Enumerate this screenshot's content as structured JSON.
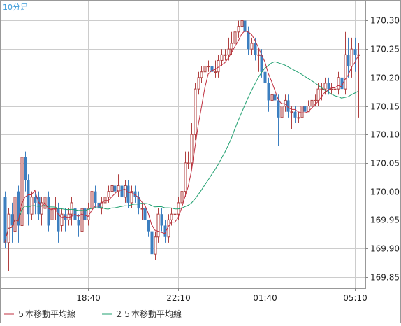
{
  "timeframe_label": "10分足",
  "legend": {
    "ma5_label": "５本移動平均線",
    "ma25_label": "２５本移動平均線"
  },
  "colors": {
    "up": "#b04040",
    "down": "#3c7fc0",
    "ma5": "#c03040",
    "ma25": "#20a070",
    "grid": "#cccccc",
    "axis": "#888888"
  },
  "chart_data": {
    "type": "candlestick",
    "title": "",
    "x_tick_labels": [
      "18:40",
      "22:10",
      "01:40",
      "05:10"
    ],
    "x_tick_candle_index": [
      25,
      52,
      78,
      105
    ],
    "y_tick_labels": [
      "170.30",
      "170.25",
      "170.20",
      "170.15",
      "170.10",
      "170.05",
      "170.00",
      "169.95",
      "169.90",
      "169.85"
    ],
    "ylim": [
      169.83,
      170.335
    ],
    "grid": true,
    "legend_position": "bottom-left",
    "series": [
      {
        "name": "５本移動平均線",
        "type": "line"
      },
      {
        "name": "２５本移動平均線",
        "type": "line"
      }
    ],
    "candles": {
      "open": [
        169.99,
        169.91,
        169.96,
        169.93,
        170.0,
        169.94,
        170.06,
        170.02,
        169.96,
        169.99,
        169.99,
        169.96,
        169.97,
        169.99,
        169.95,
        169.97,
        169.97,
        169.94,
        169.96,
        169.95,
        169.96,
        169.97,
        169.95,
        169.93,
        169.97,
        169.95,
        169.97,
        170.0,
        169.98,
        169.97,
        169.98,
        169.99,
        170.0,
        170.01,
        170.0,
        170.01,
        169.99,
        170.01,
        169.98,
        170.0,
        169.99,
        169.97,
        169.97,
        169.95,
        169.93,
        169.89,
        169.92,
        169.96,
        169.94,
        169.92,
        169.95,
        169.96,
        169.96,
        169.98,
        170.0,
        170.05,
        170.05,
        170.1,
        170.18,
        170.2,
        170.21,
        170.22,
        170.22,
        170.21,
        170.21,
        170.23,
        170.24,
        170.24,
        170.25,
        170.26,
        170.28,
        170.29,
        170.3,
        170.28,
        170.25,
        170.26,
        170.24,
        170.24,
        170.21,
        170.19,
        170.16,
        170.17,
        170.16,
        170.13,
        170.15,
        170.16,
        170.14,
        170.14,
        170.13,
        170.13,
        170.15,
        170.14,
        170.15,
        170.16,
        170.16,
        170.18,
        170.18,
        170.19,
        170.18,
        170.18,
        170.18,
        170.2,
        170.18,
        170.24,
        170.22,
        170.25,
        170.24
      ],
      "close": [
        169.91,
        169.96,
        169.94,
        169.99,
        169.94,
        170.06,
        170.02,
        169.96,
        169.99,
        169.98,
        169.96,
        169.98,
        169.99,
        169.94,
        169.97,
        169.97,
        169.93,
        169.96,
        169.95,
        169.96,
        169.98,
        169.95,
        169.94,
        169.97,
        169.95,
        169.97,
        170.0,
        169.98,
        169.97,
        169.98,
        169.99,
        170.0,
        170.01,
        170.0,
        170.01,
        169.99,
        170.01,
        169.98,
        170.0,
        169.99,
        169.97,
        169.97,
        169.95,
        169.93,
        169.89,
        169.92,
        169.96,
        169.94,
        169.92,
        169.95,
        169.96,
        169.96,
        169.98,
        170.0,
        170.05,
        170.05,
        170.1,
        170.18,
        170.2,
        170.21,
        170.22,
        170.22,
        170.21,
        170.21,
        170.23,
        170.24,
        170.24,
        170.25,
        170.26,
        170.28,
        170.29,
        170.3,
        170.28,
        170.25,
        170.26,
        170.24,
        170.24,
        170.21,
        170.19,
        170.16,
        170.17,
        170.16,
        170.13,
        170.15,
        170.16,
        170.14,
        170.14,
        170.13,
        170.13,
        170.15,
        170.14,
        170.15,
        170.16,
        170.16,
        170.18,
        170.18,
        170.19,
        170.18,
        170.18,
        170.18,
        170.2,
        170.18,
        170.24,
        170.22,
        170.25,
        170.24,
        170.24
      ],
      "high": [
        170.0,
        169.97,
        169.98,
        170.0,
        170.01,
        170.07,
        170.07,
        170.03,
        170.0,
        170.0,
        170.0,
        169.99,
        170.0,
        170.0,
        169.98,
        169.99,
        169.98,
        169.97,
        169.97,
        169.97,
        169.99,
        169.98,
        169.96,
        169.98,
        169.98,
        169.98,
        170.06,
        170.01,
        169.99,
        169.99,
        170.0,
        170.01,
        170.04,
        170.05,
        170.03,
        170.02,
        170.02,
        170.02,
        170.01,
        170.01,
        170.0,
        169.98,
        169.97,
        169.95,
        169.94,
        169.93,
        169.97,
        169.97,
        169.95,
        169.96,
        169.97,
        169.97,
        169.99,
        170.06,
        170.07,
        170.07,
        170.12,
        170.19,
        170.21,
        170.22,
        170.23,
        170.23,
        170.23,
        170.23,
        170.24,
        170.25,
        170.25,
        170.27,
        170.28,
        170.3,
        170.3,
        170.33,
        170.3,
        170.29,
        170.27,
        170.27,
        170.25,
        170.25,
        170.22,
        170.2,
        170.19,
        170.17,
        170.17,
        170.16,
        170.17,
        170.17,
        170.15,
        170.15,
        170.14,
        170.16,
        170.16,
        170.16,
        170.17,
        170.17,
        170.19,
        170.19,
        170.2,
        170.2,
        170.19,
        170.19,
        170.21,
        170.21,
        170.28,
        170.27,
        170.27,
        170.27,
        170.26
      ],
      "low": [
        169.9,
        169.86,
        169.91,
        169.92,
        169.91,
        169.92,
        170.0,
        169.94,
        169.95,
        169.96,
        169.95,
        169.94,
        169.95,
        169.93,
        169.93,
        169.95,
        169.91,
        169.93,
        169.93,
        169.94,
        169.94,
        169.91,
        169.92,
        169.92,
        169.94,
        169.94,
        169.96,
        169.97,
        169.96,
        169.96,
        169.97,
        169.98,
        169.98,
        169.99,
        169.99,
        169.98,
        169.98,
        169.97,
        169.97,
        169.98,
        169.96,
        169.95,
        169.93,
        169.92,
        169.88,
        169.88,
        169.91,
        169.93,
        169.91,
        169.91,
        169.94,
        169.95,
        169.95,
        169.97,
        169.99,
        170.04,
        170.04,
        170.09,
        170.17,
        170.19,
        170.2,
        170.21,
        170.2,
        170.2,
        170.2,
        170.22,
        170.23,
        170.23,
        170.24,
        170.25,
        170.27,
        170.28,
        170.26,
        170.24,
        170.24,
        170.23,
        170.21,
        170.2,
        170.17,
        170.14,
        170.15,
        170.14,
        170.08,
        170.12,
        170.14,
        170.13,
        170.11,
        170.12,
        170.12,
        170.12,
        170.13,
        170.14,
        170.14,
        170.15,
        170.15,
        170.16,
        170.17,
        170.17,
        170.17,
        170.17,
        170.17,
        170.13,
        170.17,
        170.2,
        170.2,
        170.21,
        170.13
      ]
    }
  }
}
